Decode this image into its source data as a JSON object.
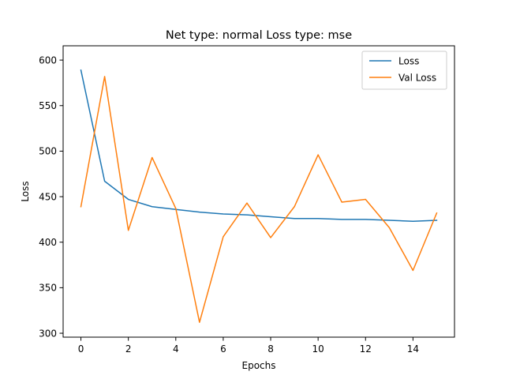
{
  "chart_data": {
    "type": "line",
    "title": "Net type: normal Loss type: mse",
    "xlabel": "Epochs",
    "ylabel": "Loss",
    "xlim": [
      -0.75,
      15.75
    ],
    "ylim": [
      300,
      600
    ],
    "xticks": [
      0,
      2,
      4,
      6,
      8,
      10,
      12,
      14
    ],
    "yticks": [
      300,
      350,
      400,
      450,
      500,
      550,
      600
    ],
    "grid": false,
    "legend_position": "top-right",
    "x": [
      0,
      1,
      2,
      3,
      4,
      5,
      6,
      7,
      8,
      9,
      10,
      11,
      12,
      13,
      14,
      15
    ],
    "series": [
      {
        "name": "Loss",
        "color": "#1f77b4",
        "values": [
          589,
          467,
          447,
          439,
          436,
          433,
          431,
          430,
          428,
          426,
          426,
          425,
          425,
          424,
          423,
          424
        ]
      },
      {
        "name": "Val Loss",
        "color": "#ff7f0e",
        "values": [
          439,
          582,
          413,
          493,
          437,
          312,
          406,
          443,
          405,
          439,
          496,
          444,
          447,
          416,
          369,
          432
        ]
      }
    ]
  }
}
